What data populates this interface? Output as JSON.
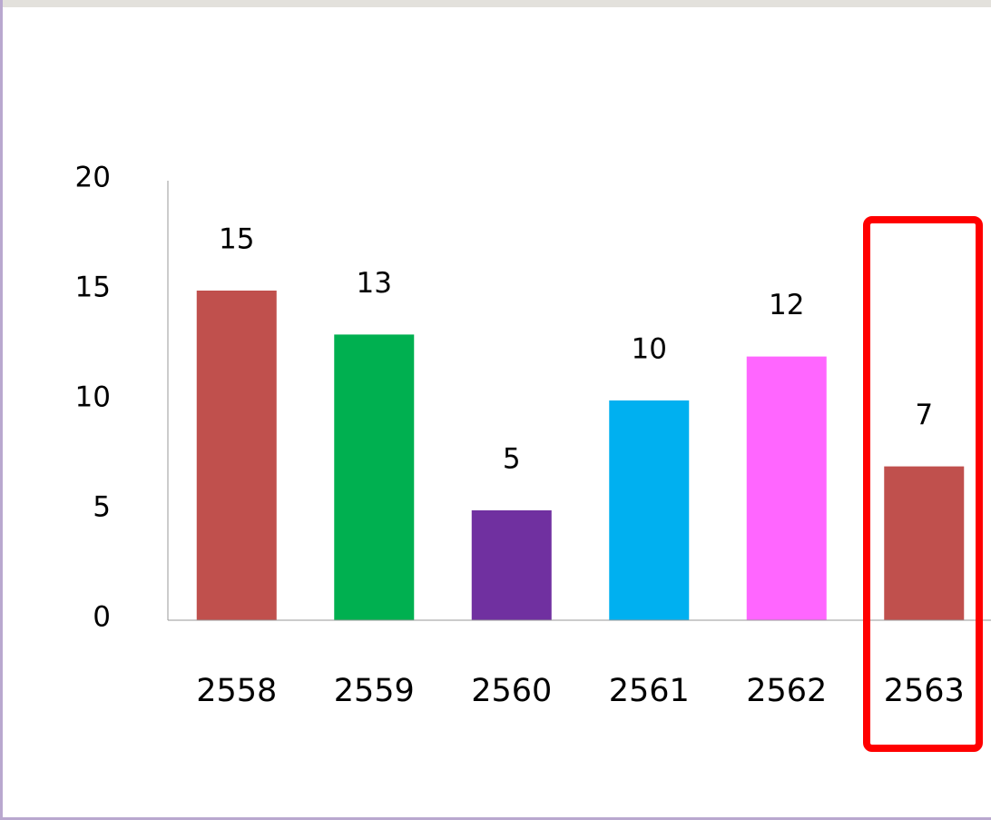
{
  "chart_data": {
    "type": "bar",
    "categories": [
      "2558",
      "2559",
      "2560",
      "2561",
      "2562",
      "2563"
    ],
    "values": [
      15,
      13,
      5,
      10,
      12,
      7
    ],
    "colors": [
      "#c0504d",
      "#00b050",
      "#7030a0",
      "#00b0f0",
      "#ff66ff",
      "#c0504d"
    ],
    "ylim": [
      0,
      20
    ],
    "yticks": [
      0,
      5,
      10,
      15,
      20
    ],
    "grid": false
  }
}
